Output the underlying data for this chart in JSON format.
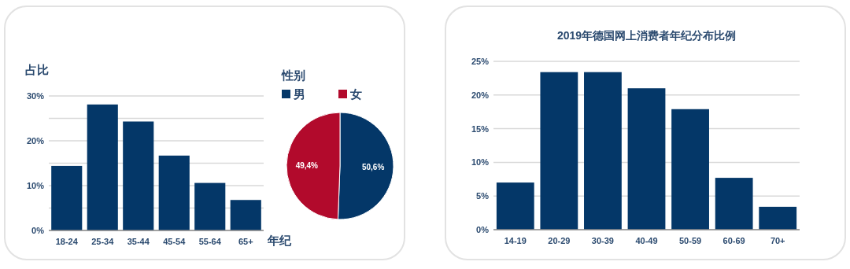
{
  "chart_data": [
    {
      "type": "bar",
      "xlabel": "年纪",
      "ylabel": "占比",
      "categories": [
        "18-24",
        "25-34",
        "35-44",
        "45-54",
        "55-64",
        "65+"
      ],
      "values": [
        14.4,
        28.1,
        24.3,
        16.7,
        10.6,
        6.8
      ],
      "color": "#043768",
      "ylim": [
        0,
        30
      ],
      "yticks": [
        {
          "value": 0,
          "label": "0%"
        },
        {
          "value": 5,
          "label": null
        },
        {
          "value": 10,
          "label": "10%"
        },
        {
          "value": 15,
          "label": null
        },
        {
          "value": 20,
          "label": "20%"
        },
        {
          "value": 25,
          "label": null
        },
        {
          "value": 30,
          "label": "30%"
        }
      ],
      "grid": "y"
    },
    {
      "type": "pie",
      "legend_title": "性别",
      "categories": [
        "男",
        "女"
      ],
      "values": [
        50.6,
        49.4
      ],
      "colors": [
        "#043768",
        "#b20a2c"
      ],
      "value_labels": [
        "50,6%",
        "49,4%"
      ],
      "legend": "top"
    },
    {
      "type": "bar",
      "title": "2019年德国网上消费者年纪分布比例",
      "categories": [
        "14-19",
        "20-29",
        "30-39",
        "40-49",
        "50-59",
        "60-69",
        "70+"
      ],
      "values": [
        7.0,
        23.4,
        23.4,
        21.0,
        17.9,
        7.7,
        3.4
      ],
      "color": "#043768",
      "ylim": [
        0,
        25
      ],
      "yticks": [
        {
          "value": 0,
          "label": "0%"
        },
        {
          "value": 5,
          "label": "5%"
        },
        {
          "value": 10,
          "label": "10%"
        },
        {
          "value": 15,
          "label": "15%"
        },
        {
          "value": 20,
          "label": "20%"
        },
        {
          "value": 25,
          "label": "25%"
        }
      ],
      "grid": "y"
    }
  ]
}
